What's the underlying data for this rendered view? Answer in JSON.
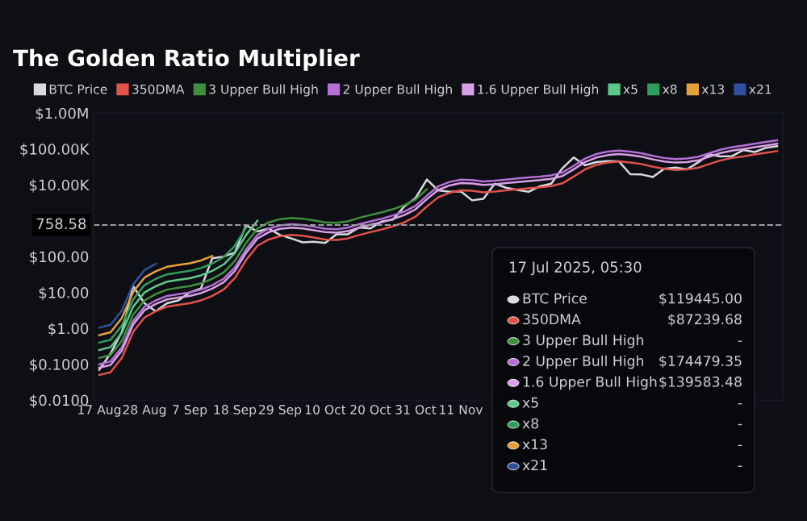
{
  "chart_data": {
    "type": "line",
    "title": "The Golden Ratio Multiplier",
    "categories": [
      "17 Aug",
      null,
      null,
      null,
      "28 Aug",
      null,
      null,
      null,
      "7 Sep",
      null,
      null,
      null,
      "18 Sep",
      null,
      null,
      null,
      "29 Sep",
      null,
      null,
      null,
      "10 Oct",
      null,
      null,
      null,
      "20 Oct",
      null,
      null,
      null,
      "31 Oct",
      null,
      null,
      null,
      "11 Nov",
      null,
      null,
      null,
      null,
      null,
      null,
      null,
      null,
      null,
      null,
      null,
      null,
      null,
      null,
      null,
      null,
      null,
      null,
      null,
      null,
      null,
      null,
      null,
      null,
      null,
      null,
      null,
      null
    ],
    "series": [
      {
        "name": "BTC Price",
        "color": "#d9d9e0",
        "values": [
          0.07,
          0.2,
          0.8,
          15,
          5,
          3,
          5,
          6,
          10,
          13,
          90,
          100,
          130,
          750,
          500,
          600,
          400,
          320,
          250,
          260,
          240,
          420,
          420,
          650,
          610,
          960,
          1080,
          2500,
          4300,
          14000,
          7000,
          6400,
          6600,
          3700,
          4100,
          10800,
          8300,
          7200,
          6400,
          9100,
          10800,
          29000,
          58000,
          35000,
          43000,
          46000,
          45000,
          19800,
          19400,
          16500,
          28000,
          30400,
          27000,
          42000,
          71000,
          62000,
          63000,
          93000,
          82000,
          107000,
          119445
        ]
      },
      {
        "name": "350DMA",
        "color": "#e0524a",
        "values": [
          0.05,
          0.06,
          0.15,
          0.8,
          2,
          3,
          4,
          4.5,
          5,
          6,
          8,
          12,
          25,
          80,
          200,
          300,
          370,
          400,
          380,
          340,
          300,
          290,
          320,
          400,
          480,
          570,
          700,
          900,
          1300,
          2500,
          4500,
          6000,
          7000,
          6800,
          6200,
          6500,
          7000,
          7500,
          8000,
          8500,
          9200,
          11000,
          17000,
          27000,
          36000,
          42000,
          45000,
          42000,
          38000,
          32000,
          28000,
          26000,
          27000,
          30000,
          38000,
          48000,
          56000,
          62000,
          70000,
          78000,
          87240
        ]
      },
      {
        "name": "3 Upper Bull High",
        "color": "#3f8f3f",
        "values": [
          0.15,
          0.18,
          0.45,
          2.4,
          6,
          9,
          12,
          13.5,
          15,
          18,
          24,
          36,
          75,
          240,
          600,
          900,
          1110,
          1200,
          1140,
          1020,
          900,
          870,
          960,
          1200,
          1440,
          1710,
          2100,
          2700,
          3900,
          7500,
          null,
          null,
          null,
          null,
          null,
          null,
          null,
          null,
          null,
          null,
          null,
          null,
          null,
          null,
          null,
          null,
          null,
          null,
          null,
          null,
          null,
          null,
          null,
          null,
          null,
          null,
          null,
          null,
          null,
          null,
          null
        ]
      },
      {
        "name": "2 Upper Bull High",
        "color": "#b56fd6",
        "values": [
          0.1,
          0.12,
          0.3,
          1.6,
          4,
          6,
          8,
          9,
          10,
          12,
          16,
          24,
          50,
          160,
          400,
          600,
          740,
          800,
          760,
          680,
          600,
          580,
          640,
          800,
          960,
          1140,
          1400,
          1800,
          2600,
          5000,
          9000,
          12000,
          14000,
          13600,
          12400,
          13000,
          14000,
          15000,
          16000,
          17000,
          18400,
          22000,
          34000,
          54000,
          72000,
          84000,
          90000,
          84000,
          76000,
          64000,
          56000,
          52000,
          54000,
          60000,
          76000,
          96000,
          112000,
          124000,
          140000,
          156000,
          174479
        ]
      },
      {
        "name": "1.6 Upper Bull High",
        "color": "#d9a0e8",
        "values": [
          0.08,
          0.096,
          0.24,
          1.28,
          3.2,
          4.8,
          6.4,
          7.2,
          8,
          9.6,
          12.8,
          19.2,
          40,
          128,
          320,
          480,
          592,
          640,
          608,
          544,
          480,
          464,
          512,
          640,
          768,
          912,
          1120,
          1440,
          2080,
          4000,
          7200,
          9600,
          11200,
          10880,
          9920,
          10400,
          11200,
          12000,
          12800,
          13600,
          14720,
          17600,
          27200,
          43200,
          57600,
          67200,
          72000,
          67200,
          60800,
          51200,
          44800,
          41600,
          43200,
          48000,
          60800,
          76800,
          89600,
          99200,
          112000,
          124800,
          139583
        ]
      },
      {
        "name": "x5",
        "color": "#5cc98a",
        "values": [
          0.25,
          0.3,
          0.75,
          4,
          10,
          15,
          20,
          22.5,
          25,
          30,
          40,
          60,
          125,
          400,
          1000,
          null,
          null,
          null,
          null,
          null,
          null,
          null,
          null,
          null,
          null,
          null,
          null,
          null,
          null,
          null,
          null,
          null,
          null,
          null,
          null,
          null,
          null,
          null,
          null,
          null,
          null,
          null,
          null,
          null,
          null,
          null,
          null,
          null,
          null,
          null,
          null,
          null,
          null,
          null,
          null,
          null,
          null,
          null,
          null,
          null,
          null
        ]
      },
      {
        "name": "x8",
        "color": "#2e9e5b",
        "values": [
          0.4,
          0.48,
          1.2,
          6.4,
          16,
          24,
          32,
          36,
          40,
          48,
          64,
          96,
          200,
          640,
          null,
          null,
          null,
          null,
          null,
          null,
          null,
          null,
          null,
          null,
          null,
          null,
          null,
          null,
          null,
          null,
          null,
          null,
          null,
          null,
          null,
          null,
          null,
          null,
          null,
          null,
          null,
          null,
          null,
          null,
          null,
          null,
          null,
          null,
          null,
          null,
          null,
          null,
          null,
          null,
          null,
          null,
          null,
          null,
          null,
          null,
          null
        ]
      },
      {
        "name": "x13",
        "color": "#e8a13a",
        "values": [
          0.65,
          0.78,
          1.95,
          10.4,
          26,
          39,
          52,
          58.5,
          65,
          78,
          104,
          null,
          null,
          null,
          null,
          null,
          null,
          null,
          null,
          null,
          null,
          null,
          null,
          null,
          null,
          null,
          null,
          null,
          null,
          null,
          null,
          null,
          null,
          null,
          null,
          null,
          null,
          null,
          null,
          null,
          null,
          null,
          null,
          null,
          null,
          null,
          null,
          null,
          null,
          null,
          null,
          null,
          null,
          null,
          null,
          null,
          null,
          null,
          null,
          null,
          null
        ]
      },
      {
        "name": "x21",
        "color": "#2f4f9e",
        "values": [
          1.05,
          1.26,
          3.15,
          16.8,
          42,
          63,
          null,
          null,
          null,
          null,
          null,
          null,
          null,
          null,
          null,
          null,
          null,
          null,
          null,
          null,
          null,
          null,
          null,
          null,
          null,
          null,
          null,
          null,
          null,
          null,
          null,
          null,
          null,
          null,
          null,
          null,
          null,
          null,
          null,
          null,
          null,
          null,
          null,
          null,
          null,
          null,
          null,
          null,
          null,
          null,
          null,
          null,
          null,
          null,
          null,
          null,
          null,
          null,
          null,
          null,
          null
        ]
      }
    ],
    "log": "y",
    "ylim": [
      0.01,
      1000000
    ],
    "yticks": [
      {
        "value": 0.01,
        "label": "$0.0100"
      },
      {
        "value": 0.1,
        "label": "$0.1000"
      },
      {
        "value": 1,
        "label": "$1.00"
      },
      {
        "value": 10,
        "label": "$10.00"
      },
      {
        "value": 100,
        "label": "$100.00"
      },
      {
        "value": 10000,
        "label": "$10.00K"
      },
      {
        "value": 100000,
        "label": "$100.00K"
      },
      {
        "value": 1000000,
        "label": "$1.00M"
      }
    ],
    "ref_lines": [
      {
        "axis": "y",
        "value": 758.58,
        "label": "758.58",
        "color": "#9a9aa0",
        "line_style": "dashed"
      }
    ],
    "annotations": [
      "17 Jul 2025, 05:30",
      "BTC Price",
      "$119445.00",
      "350DMA",
      "$87239.68",
      "3 Upper Bull High",
      "-",
      "2 Upper Bull High",
      "$174479.35",
      "1.6 Upper Bull High",
      "$139583.48",
      "x5",
      "-",
      "x8",
      "-",
      "x13",
      "-",
      "x21",
      "-"
    ],
    "legend": "top",
    "grid": false,
    "marker": "none",
    "line_style": "solid"
  }
}
